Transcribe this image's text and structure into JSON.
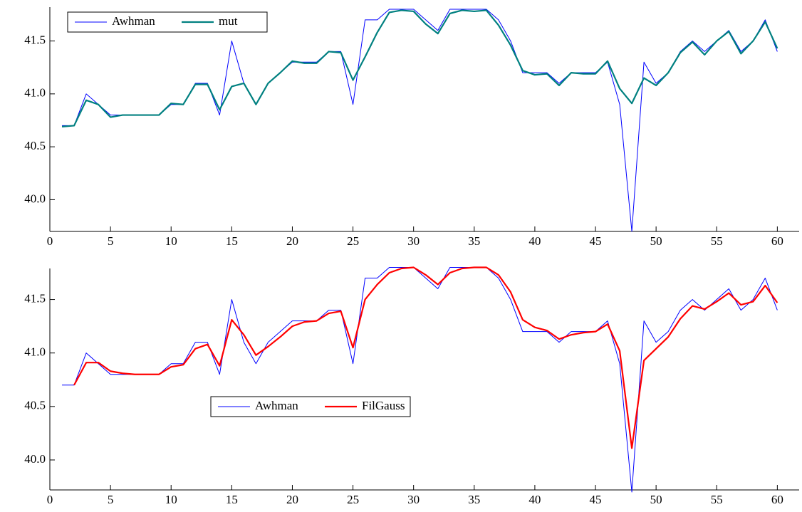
{
  "chart_data": [
    {
      "type": "line",
      "x": [
        1,
        2,
        3,
        4,
        5,
        6,
        7,
        8,
        9,
        10,
        11,
        12,
        13,
        14,
        15,
        16,
        17,
        18,
        19,
        20,
        21,
        22,
        23,
        24,
        25,
        26,
        27,
        28,
        29,
        30,
        31,
        32,
        33,
        34,
        35,
        36,
        37,
        38,
        39,
        40,
        41,
        42,
        43,
        44,
        45,
        46,
        47,
        48,
        49,
        50,
        51,
        52,
        53,
        54,
        55,
        56,
        57,
        58,
        59,
        60
      ],
      "series": [
        {
          "name": "Awhman",
          "color": "#0000ff",
          "values": [
            40.7,
            40.7,
            41.0,
            40.9,
            40.8,
            40.8,
            40.8,
            40.8,
            40.8,
            40.9,
            40.9,
            41.1,
            41.1,
            40.8,
            41.5,
            41.1,
            40.9,
            41.1,
            41.2,
            41.3,
            41.3,
            41.3,
            41.4,
            41.4,
            40.9,
            41.7,
            41.7,
            41.8,
            41.8,
            41.8,
            41.7,
            41.6,
            41.8,
            41.8,
            41.8,
            41.8,
            41.7,
            41.5,
            41.2,
            41.2,
            41.2,
            41.1,
            41.2,
            41.2,
            41.2,
            41.3,
            40.9,
            39.7,
            41.3,
            41.1,
            41.2,
            41.4,
            41.5,
            41.4,
            41.5,
            41.6,
            41.4,
            41.5,
            41.7,
            41.4
          ]
        },
        {
          "name": "mut",
          "color": "#008080",
          "values": [
            40.69,
            40.7,
            40.94,
            40.9,
            40.78,
            40.8,
            40.8,
            40.8,
            40.8,
            40.91,
            40.9,
            41.09,
            41.09,
            40.85,
            41.07,
            41.1,
            40.9,
            41.1,
            41.2,
            41.31,
            41.29,
            41.29,
            41.4,
            41.39,
            41.13,
            41.35,
            41.58,
            41.77,
            41.79,
            41.78,
            41.66,
            41.57,
            41.76,
            41.79,
            41.78,
            41.79,
            41.65,
            41.46,
            41.22,
            41.18,
            41.19,
            41.08,
            41.2,
            41.19,
            41.19,
            41.31,
            41.05,
            40.91,
            41.15,
            41.08,
            41.2,
            41.39,
            41.49,
            41.37,
            41.5,
            41.59,
            41.38,
            41.5,
            41.68,
            41.43
          ]
        }
      ],
      "xlim": [
        0,
        61.8
      ],
      "xticks": [
        0,
        5,
        10,
        15,
        20,
        25,
        30,
        35,
        40,
        45,
        50,
        55,
        60
      ],
      "ylim": [
        39.7,
        41.82
      ],
      "yticks": [
        {
          "value": 40,
          "label": "40.0"
        },
        40.5,
        {
          "value": 41,
          "label": "41.0"
        },
        41.5
      ],
      "legend": "upper left"
    },
    {
      "type": "line",
      "x": [
        1,
        2,
        3,
        4,
        5,
        6,
        7,
        8,
        9,
        10,
        11,
        12,
        13,
        14,
        15,
        16,
        17,
        18,
        19,
        20,
        21,
        22,
        23,
        24,
        25,
        26,
        27,
        28,
        29,
        30,
        31,
        32,
        33,
        34,
        35,
        36,
        37,
        38,
        39,
        40,
        41,
        42,
        43,
        44,
        45,
        46,
        47,
        48,
        49,
        50,
        51,
        52,
        53,
        54,
        55,
        56,
        57,
        58,
        59,
        60
      ],
      "series": [
        {
          "name": "Awhman",
          "color": "#0000ff",
          "values": [
            40.7,
            40.7,
            41.0,
            40.9,
            40.8,
            40.8,
            40.8,
            40.8,
            40.8,
            40.9,
            40.9,
            41.1,
            41.1,
            40.8,
            41.5,
            41.1,
            40.9,
            41.1,
            41.2,
            41.3,
            41.3,
            41.3,
            41.4,
            41.4,
            40.9,
            41.7,
            41.7,
            41.8,
            41.8,
            41.8,
            41.7,
            41.6,
            41.8,
            41.8,
            41.8,
            41.8,
            41.7,
            41.5,
            41.2,
            41.2,
            41.2,
            41.1,
            41.2,
            41.2,
            41.2,
            41.3,
            40.9,
            39.7,
            41.3,
            41.1,
            41.2,
            41.4,
            41.5,
            41.4,
            41.5,
            41.6,
            41.4,
            41.5,
            41.7,
            41.4
          ]
        },
        {
          "name": "FilGauss",
          "color": "#ff0000",
          "values": [
            null,
            40.7,
            40.91,
            40.91,
            40.83,
            40.81,
            40.8,
            40.8,
            40.8,
            40.87,
            40.89,
            41.04,
            41.08,
            40.88,
            41.31,
            41.17,
            40.98,
            41.06,
            41.15,
            41.25,
            41.29,
            41.3,
            41.37,
            41.39,
            41.05,
            41.5,
            41.64,
            41.75,
            41.79,
            41.8,
            41.73,
            41.64,
            41.75,
            41.79,
            41.8,
            41.8,
            41.73,
            41.57,
            41.31,
            41.24,
            41.21,
            41.13,
            41.17,
            41.19,
            41.2,
            41.27,
            41.02,
            40.11,
            40.93,
            41.04,
            41.15,
            41.32,
            41.44,
            41.41,
            41.48,
            41.56,
            41.45,
            41.48,
            41.63,
            41.47
          ]
        }
      ],
      "xlim": [
        0,
        61.8
      ],
      "xticks": [
        0,
        5,
        10,
        15,
        20,
        25,
        30,
        35,
        40,
        45,
        50,
        55,
        60
      ],
      "ylim": [
        39.72,
        41.79
      ],
      "yticks": [
        {
          "value": 40,
          "label": "40.0"
        },
        40.5,
        {
          "value": 41,
          "label": "41.0"
        },
        41.5
      ],
      "legend": "center"
    }
  ]
}
